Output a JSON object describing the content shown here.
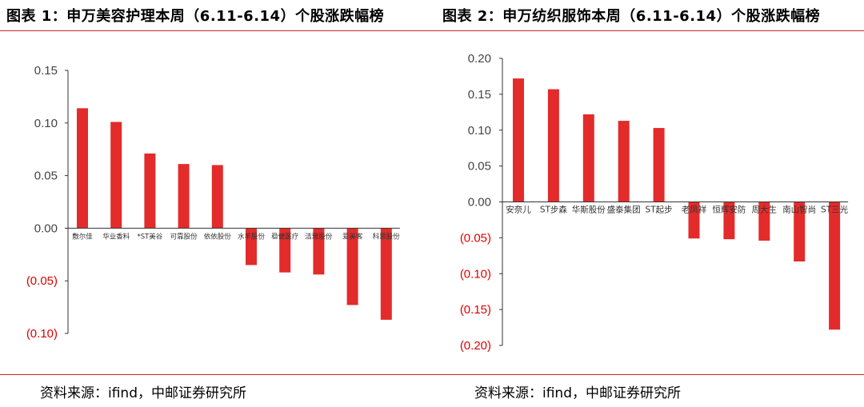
{
  "titles": {
    "left": "图表 1：申万美容护理本周（6.11-6.14）个股涨跌幅榜",
    "right": "图表 2：申万纺织服饰本周（6.11-6.14）个股涨跌幅榜"
  },
  "sources": {
    "left": "资料来源：ifind，中邮证券研究所",
    "right": "资料来源：ifind，中邮证券研究所"
  },
  "colors": {
    "bar": "#e32b2b",
    "axis": "#333333",
    "tick_positive": "#444444",
    "tick_negative": "#e00000",
    "rule": "#c62828"
  },
  "chart_data": [
    {
      "type": "bar",
      "categories": [
        "敷尔佳",
        "华业香料",
        "*ST美谷",
        "可靠股份",
        "依依股份",
        "水羊股份",
        "稳健医疗",
        "洁雅股份",
        "爱美客",
        "科思股份"
      ],
      "values": [
        0.114,
        0.101,
        0.071,
        0.061,
        0.06,
        -0.035,
        -0.042,
        -0.044,
        -0.073,
        -0.087
      ],
      "ylim": [
        -0.1,
        0.15
      ],
      "yticks": [
        0.15,
        0.1,
        0.05,
        0.0,
        -0.05,
        -0.1
      ],
      "ytick_labels": [
        "0.15",
        "0.10",
        "0.05",
        "0.00",
        "(0.05)",
        "(0.10)"
      ],
      "negative_tick_color": "red",
      "grid": false,
      "legend": "none"
    },
    {
      "type": "bar",
      "categories": [
        "安奈儿",
        "ST步森",
        "华斯股份",
        "盛泰集团",
        "ST起步",
        "老凤祥",
        "恒辉安防",
        "周大生",
        "南山智尚",
        "ST三光"
      ],
      "values": [
        0.172,
        0.157,
        0.122,
        0.113,
        0.103,
        -0.051,
        -0.052,
        -0.054,
        -0.083,
        -0.178
      ],
      "ylim": [
        -0.2,
        0.2
      ],
      "yticks": [
        0.2,
        0.15,
        0.1,
        0.05,
        0.0,
        -0.05,
        -0.1,
        -0.15,
        -0.2
      ],
      "ytick_labels": [
        "0.20",
        "0.15",
        "0.10",
        "0.05",
        "0.00",
        "(0.05)",
        "(0.10)",
        "(0.15)",
        "(0.20)"
      ],
      "negative_tick_color": "red",
      "grid": false,
      "legend": "none"
    }
  ]
}
